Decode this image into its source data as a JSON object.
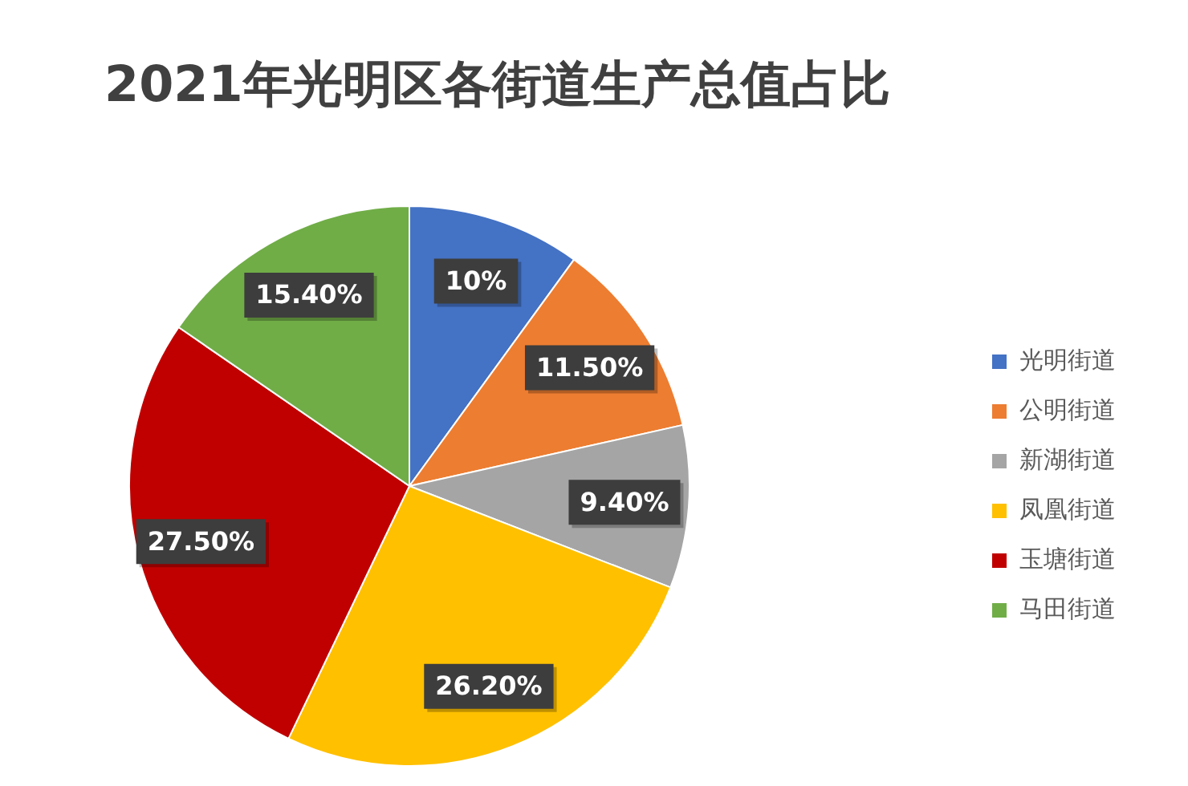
{
  "chart_data": {
    "type": "pie",
    "title": "2021年光明区各街道生产总值占比",
    "categories": [
      "光明街道",
      "公明街道",
      "新湖街道",
      "凤凰街道",
      "玉塘街道",
      "马田街道"
    ],
    "values": [
      10,
      11.5,
      9.4,
      26.2,
      27.5,
      15.4
    ],
    "colors": [
      "#4472c4",
      "#ed7d31",
      "#a5a5a5",
      "#ffc000",
      "#c00000",
      "#70ad47"
    ],
    "value_labels": [
      "10%",
      "11.50%",
      "9.40%",
      "26.20%",
      "27.50%",
      "15.40%"
    ],
    "legend": "right"
  }
}
